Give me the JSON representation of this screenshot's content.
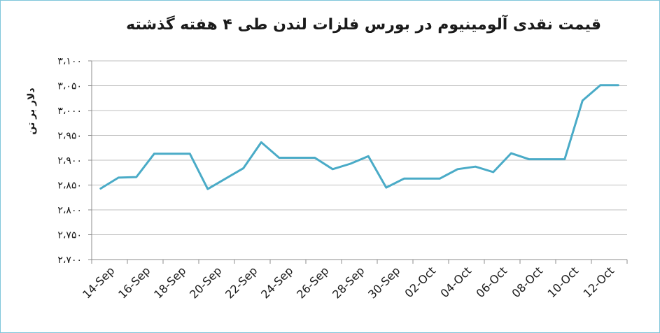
{
  "chart_data": {
    "type": "line",
    "title": "قیمت نقدی آلومینیوم در بورس فلزات لندن طی ۴ هفته گذشته",
    "ylabel": "دلار بر تن",
    "xlabel": "",
    "ylim": [
      2700,
      3100
    ],
    "yticks": [
      2700,
      2750,
      2800,
      2850,
      2900,
      2950,
      3000,
      3050,
      3100
    ],
    "ytick_labels": [
      "۲،۷۰۰",
      "۲،۷۵۰",
      "۲،۸۰۰",
      "۲،۸۵۰",
      "۲،۹۰۰",
      "۲،۹۵۰",
      "۳،۰۰۰",
      "۳،۰۵۰",
      "۳،۱۰۰"
    ],
    "x_labels": [
      "14-Sep",
      "16-Sep",
      "18-Sep",
      "20-Sep",
      "22-Sep",
      "24-Sep",
      "26-Sep",
      "28-Sep",
      "30-Sep",
      "02-Oct",
      "04-Oct",
      "06-Oct",
      "08-Oct",
      "10-Oct",
      "12-Oct"
    ],
    "grid": "horizontal",
    "legend": "none",
    "line_color": "#4aabc7",
    "series": [
      {
        "x": [
          "2018-09-14",
          "2018-09-17",
          "2018-09-18",
          "2018-09-19",
          "2018-09-20",
          "2018-09-21",
          "2018-09-24",
          "2018-09-25",
          "2018-09-26",
          "2018-09-27",
          "2018-09-28",
          "2018-10-01",
          "2018-10-02",
          "2018-10-03",
          "2018-10-04",
          "2018-10-05",
          "2018-10-08",
          "2018-10-09",
          "2018-10-10",
          "2018-10-11",
          "2018-10-12",
          "2018-10-15",
          "2018-10-16",
          "2018-10-17",
          "2018-10-18",
          "2018-10-19",
          "2018-10-22",
          "2018-10-23",
          "2018-10-24",
          "2018-10-25"
        ],
        "y": [
          2843,
          2865,
          2866,
          2913,
          2913,
          2913,
          2842,
          2863,
          2884,
          2936,
          2905,
          2905,
          2905,
          2882,
          2893,
          2908,
          2845,
          2863,
          2863,
          2863,
          2882,
          2887,
          2876,
          2914,
          2902,
          2902,
          2902,
          3020,
          3051,
          3051
        ]
      }
    ]
  }
}
